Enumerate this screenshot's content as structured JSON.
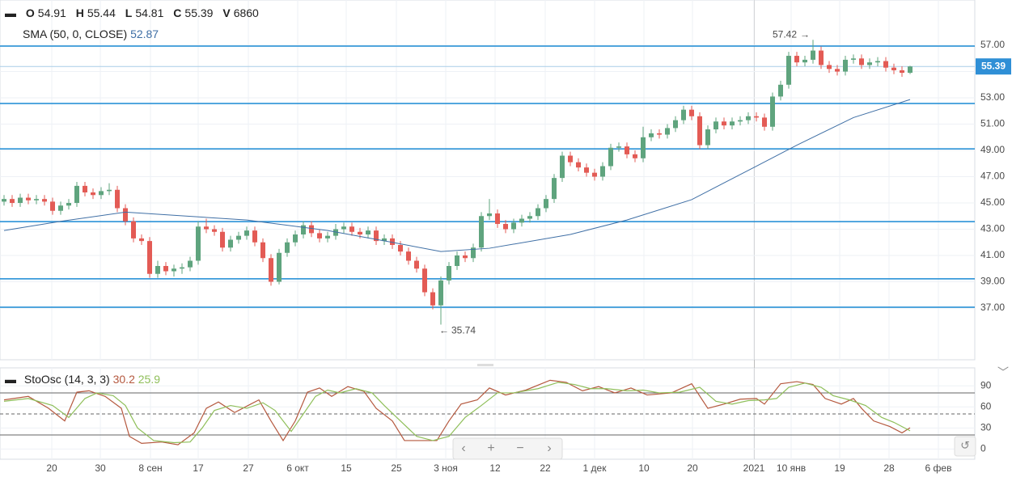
{
  "chart_data": [
    {
      "type": "candlestick",
      "header_labels": [
        "O",
        "H",
        "L",
        "C",
        "V"
      ],
      "volume": 6860,
      "up_color": "#5fa47e",
      "down_color": "#e35b55",
      "open": [
        45.1,
        45.3,
        45.0,
        45.4,
        45.2,
        45.3,
        45.1,
        44.4,
        44.8,
        45.0,
        46.3,
        45.8,
        45.6,
        45.9,
        46.0,
        44.6,
        43.6,
        42.3,
        42.1,
        39.6,
        40.2,
        39.8,
        40.0,
        40.1,
        40.6,
        43.2,
        43.0,
        42.8,
        41.6,
        42.2,
        42.5,
        42.9,
        42.0,
        40.8,
        39.0,
        41.2,
        42.0,
        42.6,
        43.3,
        42.7,
        42.3,
        42.5,
        43.0,
        43.2,
        42.8,
        42.6,
        42.9,
        42.1,
        42.3,
        41.8,
        41.3,
        40.6,
        40.0,
        38.2,
        37.2,
        39.1,
        40.2,
        41.0,
        40.8,
        41.6,
        44.0,
        44.2,
        43.4,
        43.0,
        43.5,
        43.8,
        44.0,
        44.6,
        45.3,
        46.9,
        48.6,
        48.1,
        47.7,
        47.3,
        47.0,
        47.8,
        49.2,
        49.3,
        48.7,
        48.4,
        50.0,
        50.3,
        50.2,
        50.7,
        51.3,
        52.1,
        51.6,
        49.4,
        50.6,
        51.2,
        50.9,
        51.2,
        51.3,
        51.6,
        51.5,
        50.8,
        53.1,
        54.0,
        56.2,
        55.7,
        55.9,
        56.6,
        55.5,
        55.2,
        55.0,
        55.9,
        56.0,
        55.5,
        55.7,
        55.8,
        55.3,
        55.1,
        54.91
      ],
      "high": [
        45.6,
        45.6,
        45.7,
        45.7,
        45.6,
        45.6,
        45.4,
        45.1,
        45.3,
        46.6,
        46.6,
        46.1,
        46.2,
        46.5,
        46.3,
        44.9,
        43.9,
        42.6,
        42.4,
        40.6,
        40.5,
        40.3,
        40.4,
        40.9,
        43.6,
        43.8,
        43.3,
        43.1,
        42.5,
        42.8,
        43.2,
        43.2,
        42.3,
        41.1,
        41.5,
        42.3,
        42.9,
        43.6,
        43.6,
        43.0,
        42.8,
        43.4,
        43.5,
        43.5,
        43.1,
        43.2,
        43.2,
        42.6,
        42.6,
        42.1,
        41.6,
        40.9,
        40.3,
        38.5,
        39.4,
        40.5,
        41.3,
        41.3,
        41.9,
        44.3,
        45.3,
        44.5,
        43.7,
        43.8,
        44.1,
        44.3,
        44.9,
        45.6,
        47.2,
        48.9,
        48.9,
        48.4,
        48.0,
        47.6,
        48.1,
        49.5,
        49.6,
        49.6,
        49.0,
        50.8,
        50.6,
        50.6,
        51.0,
        51.6,
        52.4,
        52.4,
        51.9,
        50.9,
        51.5,
        51.5,
        51.5,
        51.6,
        51.9,
        51.9,
        51.8,
        53.4,
        54.3,
        56.5,
        56.5,
        56.2,
        57.42,
        56.9,
        55.8,
        55.5,
        56.2,
        56.3,
        56.3,
        56.0,
        56.1,
        56.1,
        55.6,
        55.4,
        55.44
      ],
      "low": [
        44.8,
        44.7,
        44.7,
        44.9,
        44.9,
        44.8,
        44.1,
        44.1,
        44.5,
        44.7,
        45.5,
        45.3,
        45.3,
        45.6,
        44.3,
        43.3,
        42.0,
        41.8,
        39.3,
        39.3,
        39.5,
        39.4,
        39.6,
        39.8,
        40.3,
        42.7,
        42.5,
        41.3,
        41.3,
        41.9,
        42.2,
        41.7,
        40.5,
        38.7,
        38.8,
        40.9,
        41.7,
        42.3,
        42.4,
        42.0,
        42.0,
        42.2,
        42.7,
        42.5,
        42.3,
        42.3,
        41.8,
        41.8,
        41.5,
        41.0,
        40.3,
        39.7,
        37.9,
        36.9,
        35.74,
        38.8,
        39.9,
        40.5,
        40.5,
        41.3,
        43.7,
        43.1,
        42.7,
        42.7,
        43.2,
        43.5,
        43.7,
        44.3,
        45.0,
        46.6,
        47.8,
        47.4,
        47.0,
        46.7,
        46.7,
        47.5,
        48.9,
        48.4,
        48.1,
        48.1,
        49.7,
        49.9,
        49.9,
        50.4,
        51.0,
        51.3,
        49.1,
        49.1,
        50.3,
        50.6,
        50.6,
        50.9,
        51.0,
        51.2,
        50.5,
        50.5,
        52.8,
        53.7,
        55.4,
        55.4,
        55.6,
        55.2,
        54.9,
        54.7,
        54.7,
        55.6,
        55.2,
        55.2,
        55.4,
        55.0,
        54.8,
        54.6,
        54.81
      ],
      "close": [
        45.3,
        45.0,
        45.4,
        45.2,
        45.3,
        45.1,
        44.4,
        44.8,
        45.0,
        46.3,
        45.8,
        45.6,
        45.9,
        46.0,
        44.6,
        43.6,
        42.3,
        42.1,
        39.6,
        40.2,
        39.8,
        40.0,
        40.1,
        40.6,
        43.2,
        43.0,
        42.8,
        41.6,
        42.2,
        42.5,
        42.9,
        42.0,
        40.8,
        39.0,
        41.2,
        42.0,
        42.6,
        43.3,
        42.7,
        42.3,
        42.5,
        43.0,
        43.2,
        42.8,
        42.6,
        42.9,
        42.1,
        42.3,
        41.8,
        41.3,
        40.6,
        40.0,
        38.2,
        37.2,
        39.1,
        40.2,
        41.0,
        40.8,
        41.6,
        44.0,
        44.2,
        43.4,
        43.0,
        43.5,
        43.8,
        44.0,
        44.6,
        45.3,
        46.9,
        48.6,
        48.1,
        47.7,
        47.3,
        47.0,
        47.8,
        49.2,
        49.3,
        48.7,
        48.4,
        50.0,
        50.3,
        50.2,
        50.7,
        51.3,
        52.1,
        51.6,
        49.4,
        50.6,
        51.2,
        50.9,
        51.2,
        51.3,
        51.6,
        51.5,
        50.8,
        53.1,
        54.0,
        56.2,
        55.7,
        55.9,
        56.6,
        55.5,
        55.2,
        55.0,
        55.9,
        56.0,
        55.5,
        55.7,
        55.8,
        55.3,
        55.1,
        54.91,
        55.39
      ],
      "sma": {
        "name": "SMA (50, 0, CLOSE)",
        "color": "#3f6fa5",
        "x": [
          0,
          7,
          15,
          30,
          40,
          48,
          54,
          60,
          70,
          77,
          85,
          93,
          98,
          105,
          112
        ],
        "values": [
          42.9,
          43.6,
          44.3,
          43.7,
          42.9,
          42.0,
          41.3,
          41.55,
          42.6,
          43.7,
          45.25,
          47.8,
          49.4,
          51.5,
          52.87
        ]
      },
      "levels": {
        "color": "#1a8ad4",
        "values": [
          56.94,
          52.57,
          49.12,
          43.58,
          39.22,
          37.06
        ]
      },
      "last_price_color": "#2f8fd6",
      "grid": true,
      "xlim": [
        -0.5,
        120
      ],
      "xticks": [
        {
          "value": 5.9,
          "label": "20"
        },
        {
          "value": 11.9,
          "label": "30"
        },
        {
          "value": 18.1,
          "label": "8 сен"
        },
        {
          "value": 24,
          "label": "17"
        },
        {
          "value": 30.2,
          "label": "27"
        },
        {
          "value": 36.3,
          "label": "6 окт"
        },
        {
          "value": 42.3,
          "label": "15"
        },
        {
          "value": 48.5,
          "label": "25"
        },
        {
          "value": 54.6,
          "label": "3 ноя"
        },
        {
          "value": 60.7,
          "label": "12"
        },
        {
          "value": 66.9,
          "label": "22"
        },
        {
          "value": 73,
          "label": "1 дек"
        },
        {
          "value": 79.1,
          "label": "10"
        },
        {
          "value": 85.1,
          "label": "20"
        },
        {
          "value": 92.7,
          "label": "2021"
        },
        {
          "value": 97.3,
          "label": "10 янв"
        },
        {
          "value": 103.3,
          "label": "19"
        },
        {
          "value": 109.4,
          "label": "28"
        },
        {
          "value": 115.5,
          "label": "6 фев"
        }
      ],
      "ylim": [
        33.06,
        60.45
      ],
      "yticks": [
        {
          "value": 37,
          "label": "37.00"
        },
        {
          "value": 39,
          "label": "39.00"
        },
        {
          "value": 41,
          "label": "41.00"
        },
        {
          "value": 43,
          "label": "43.00"
        },
        {
          "value": 45,
          "label": "45.00"
        },
        {
          "value": 47,
          "label": "47.00"
        },
        {
          "value": 49,
          "label": "49.00"
        },
        {
          "value": 51,
          "label": "51.00"
        },
        {
          "value": 53,
          "label": "53.00"
        },
        {
          "value": 55,
          "label": "55.00"
        },
        {
          "value": 57,
          "label": "57.00"
        }
      ]
    },
    {
      "type": "line",
      "name": "StoOsc (14, 3, 3)",
      "series": [
        {
          "color": "#b5593f",
          "x": [
            0,
            3,
            5.5,
            7.5,
            9,
            10.5,
            12.5,
            14.5,
            15.5,
            17,
            19.5,
            21.5,
            23.5,
            25,
            26.5,
            28.5,
            30.5,
            31.5,
            33,
            34.5,
            36,
            37.5,
            39,
            40.5,
            42.5,
            44.5,
            46,
            48,
            49.5,
            51.5,
            53.5,
            55,
            56.5,
            58.5,
            60,
            62,
            64.5,
            67.5,
            69.5,
            71.5,
            73.5,
            75.5,
            77.5,
            79.5,
            82.5,
            85,
            87,
            89,
            91,
            93,
            94,
            96,
            98,
            100,
            101.5,
            103.5,
            105,
            106,
            107.5,
            109.5,
            111,
            112
          ],
          "values": [
            70,
            75,
            58,
            40,
            81,
            83,
            75,
            58,
            18,
            8,
            10,
            6,
            23,
            58,
            67,
            52,
            64,
            70,
            40,
            12,
            40,
            81,
            87,
            75,
            89,
            82,
            58,
            40,
            12,
            12,
            12,
            40,
            64,
            70,
            87,
            77,
            84,
            98,
            95,
            83,
            89,
            80,
            87,
            77,
            80,
            93,
            58,
            64,
            71,
            72,
            64,
            93,
            96,
            92,
            72,
            64,
            72,
            58,
            40,
            32,
            23,
            30.2
          ]
        },
        {
          "color": "#8fbf5a",
          "x": [
            0,
            3,
            6,
            8,
            10,
            11.5,
            13.5,
            15,
            16.5,
            18.5,
            21,
            23,
            24.5,
            26,
            28,
            30,
            32,
            33.5,
            35.5,
            37,
            38.5,
            40,
            41.5,
            43.5,
            45.5,
            47,
            49,
            51,
            53,
            55,
            57,
            59,
            61,
            63,
            66,
            68.5,
            70.5,
            72.5,
            74.5,
            77,
            79,
            81,
            83.5,
            86,
            88,
            90,
            92,
            94,
            95.5,
            97,
            99,
            101,
            102.5,
            104.5,
            106.5,
            108.5,
            110,
            112
          ],
          "values": [
            68,
            72,
            62,
            45,
            72,
            80,
            76,
            62,
            30,
            12,
            9,
            10,
            30,
            55,
            62,
            58,
            66,
            55,
            25,
            50,
            75,
            84,
            80,
            86,
            80,
            62,
            40,
            18,
            12,
            18,
            45,
            62,
            80,
            80,
            86,
            95,
            92,
            86,
            86,
            83,
            84,
            80,
            81,
            88,
            68,
            64,
            69,
            70,
            72,
            88,
            94,
            88,
            76,
            70,
            62,
            45,
            38,
            25.9
          ]
        }
      ],
      "levels": [
        80,
        50,
        20
      ],
      "ylim": [
        -14.6,
        115.7
      ],
      "yticks": [
        0,
        30,
        60,
        90
      ]
    }
  ]
}
